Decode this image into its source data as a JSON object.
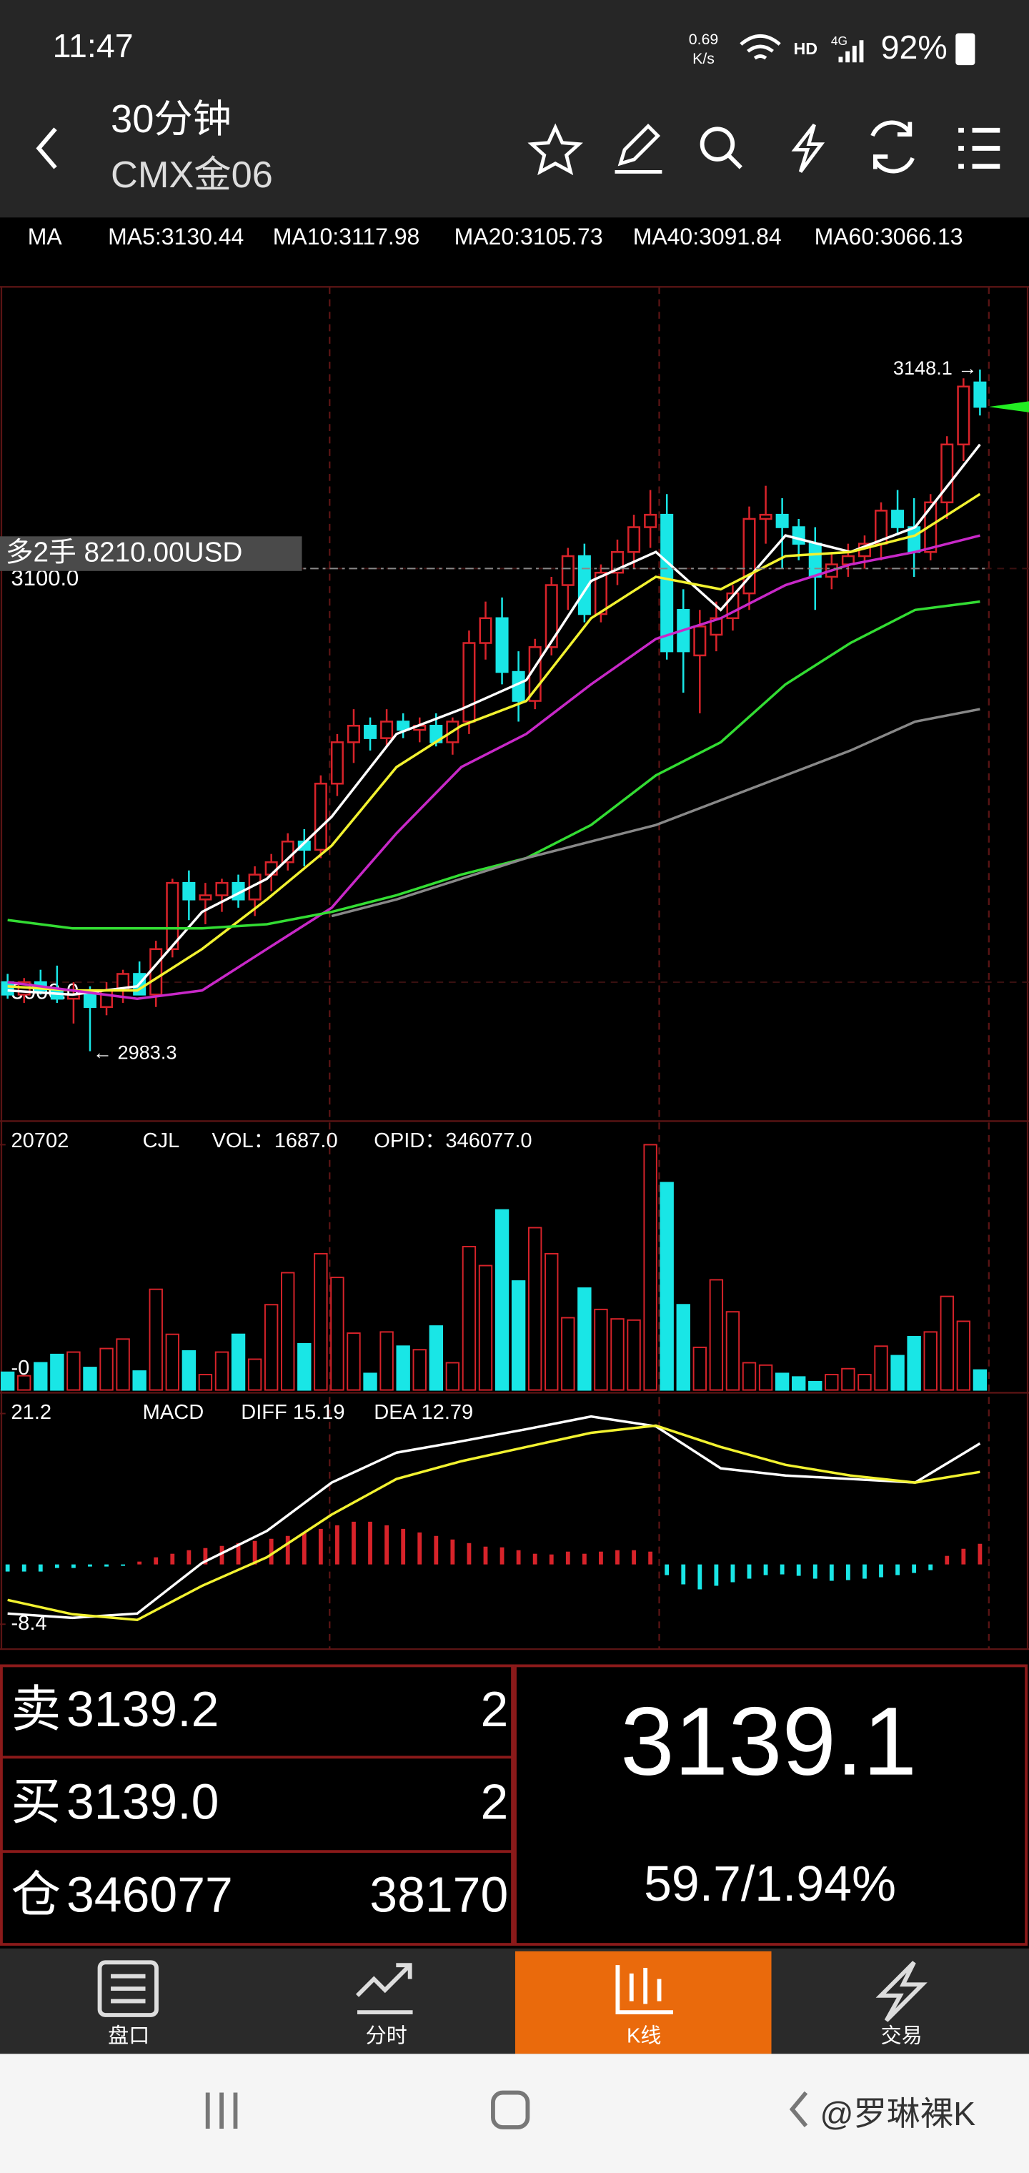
{
  "status_bar": {
    "time": "11:47",
    "speed": "0.69",
    "speed_unit": "K/s",
    "hd": "HD",
    "net": "4G",
    "battery": "92%"
  },
  "header": {
    "title": "30分钟",
    "subtitle": "CMX金06"
  },
  "ma_legend": "MA",
  "chart_data": {
    "type": "candlestick",
    "up_color": "#d8232a",
    "down_color": "#19e6e6",
    "ylim": [
      2966.4,
      3168.1
    ],
    "yticks": [
      {
        "value": 3000,
        "label": "3000.0"
      },
      {
        "value": 3100,
        "label": "3100.0"
      }
    ],
    "high_label": "3148.1 →",
    "low_label": "← 2983.3",
    "position_label": "多2手  8210.00USD",
    "ohlc": [
      [
        3000,
        3002,
        2996,
        2997
      ],
      [
        2997,
        3001,
        2995,
        3000
      ],
      [
        3000,
        3003,
        2997,
        2998
      ],
      [
        2998,
        3004,
        2995,
        2996
      ],
      [
        2996,
        3000,
        2990,
        2997
      ],
      [
        2997,
        2999,
        2983.3,
        2994
      ],
      [
        2994,
        3000,
        2992,
        2998
      ],
      [
        2998,
        3003,
        2995,
        3002
      ],
      [
        3002,
        3005,
        2997,
        2997
      ],
      [
        2997,
        3010,
        2994,
        3008
      ],
      [
        3008,
        3025,
        3006,
        3024
      ],
      [
        3024,
        3027,
        3015,
        3020
      ],
      [
        3020,
        3024,
        3014,
        3021
      ],
      [
        3021,
        3025,
        3017,
        3024
      ],
      [
        3024,
        3026,
        3018,
        3020
      ],
      [
        3020,
        3028,
        3016,
        3026
      ],
      [
        3026,
        3031,
        3022,
        3029
      ],
      [
        3029,
        3036,
        3027,
        3034
      ],
      [
        3034,
        3037,
        3028,
        3032
      ],
      [
        3032,
        3050,
        3030,
        3048
      ],
      [
        3048,
        3060,
        3045,
        3058
      ],
      [
        3058,
        3066,
        3053,
        3062
      ],
      [
        3062,
        3064,
        3056,
        3059
      ],
      [
        3059,
        3066,
        3057,
        3063
      ],
      [
        3063,
        3065,
        3059,
        3061
      ],
      [
        3061,
        3064,
        3058,
        3062
      ],
      [
        3062,
        3065,
        3057,
        3058
      ],
      [
        3058,
        3064,
        3055,
        3063
      ],
      [
        3063,
        3085,
        3060,
        3082
      ],
      [
        3082,
        3092,
        3078,
        3088
      ],
      [
        3088,
        3093,
        3072,
        3075
      ],
      [
        3075,
        3080,
        3063,
        3068
      ],
      [
        3068,
        3083,
        3066,
        3081
      ],
      [
        3081,
        3098,
        3079,
        3096
      ],
      [
        3096,
        3105,
        3090,
        3103
      ],
      [
        3103,
        3106,
        3087,
        3089
      ],
      [
        3089,
        3101,
        3087,
        3099
      ],
      [
        3099,
        3107,
        3096,
        3104
      ],
      [
        3104,
        3113,
        3100,
        3110
      ],
      [
        3110,
        3119,
        3105,
        3113
      ],
      [
        3113,
        3118,
        3078,
        3080
      ],
      [
        3090,
        3095,
        3070,
        3080
      ],
      [
        3079,
        3090,
        3065,
        3086
      ],
      [
        3084,
        3092,
        3080,
        3088
      ],
      [
        3088,
        3096,
        3085,
        3094
      ],
      [
        3094,
        3115,
        3090,
        3112
      ],
      [
        3112,
        3120,
        3106,
        3113
      ],
      [
        3113,
        3117,
        3100,
        3110
      ],
      [
        3110,
        3112,
        3102,
        3106
      ],
      [
        3106,
        3110,
        3090,
        3098
      ],
      [
        3098,
        3104,
        3095,
        3101
      ],
      [
        3101,
        3106,
        3098,
        3103
      ],
      [
        3103,
        3108,
        3100,
        3106
      ],
      [
        3106,
        3116,
        3102,
        3114
      ],
      [
        3114,
        3119,
        3108,
        3110
      ],
      [
        3110,
        3117,
        3098,
        3104
      ],
      [
        3104,
        3118,
        3102,
        3116
      ],
      [
        3116,
        3132,
        3112,
        3130
      ],
      [
        3130,
        3146,
        3126,
        3144
      ],
      [
        3145,
        3148.1,
        3137,
        3139.1
      ]
    ],
    "ma": [
      {
        "name": "MA5:3130.44",
        "color": "#ffffff",
        "values": [
          2998,
          2997,
          2999,
          3017,
          3025,
          3040,
          3060,
          3066,
          3073,
          3097,
          3104,
          3090,
          3108,
          3104,
          3110,
          3130
        ]
      },
      {
        "name": "MA10:3117.98",
        "color": "#f2f230",
        "values": [
          2999,
          2998,
          2998,
          3008,
          3020,
          3033,
          3052,
          3062,
          3068,
          3088,
          3098,
          3095,
          3103,
          3104,
          3108,
          3118
        ]
      },
      {
        "name": "MA20:3105.73",
        "color": "#c828c8",
        "values": [
          3000,
          2998,
          2996,
          2998,
          3008,
          3018,
          3036,
          3052,
          3060,
          3072,
          3083,
          3088,
          3096,
          3101,
          3104,
          3108
        ]
      },
      {
        "name": "MA40:3091.84",
        "color": "#33dd33",
        "values": [
          3015,
          3013,
          3013,
          3013,
          3014,
          3017,
          3021,
          3026,
          3030,
          3038,
          3050,
          3058,
          3072,
          3082,
          3090,
          3092
        ]
      },
      {
        "name": "MA60:3066.13",
        "color": "#888888",
        "values": [
          null,
          null,
          null,
          null,
          null,
          3016,
          3020,
          3025,
          3030,
          3034,
          3038,
          3044,
          3050,
          3056,
          3063,
          3066
        ]
      }
    ],
    "volume": {
      "title": "CJL",
      "vol": "VOL：1687.0",
      "opid": "OPID：346077.0",
      "ylim": [
        0,
        20702
      ],
      "yticks": [
        20702,
        {
          "value": 0,
          "label": "-0"
        }
      ],
      "values": [
        1500,
        1200,
        2300,
        3000,
        3200,
        1900,
        3500,
        4300,
        1600,
        8500,
        4700,
        3300,
        1300,
        3200,
        4700,
        2600,
        7200,
        9900,
        3900,
        11500,
        9500,
        4800,
        1400,
        4900,
        3700,
        3400,
        5400,
        2300,
        12100,
        10500,
        15200,
        9200,
        13700,
        11500,
        6100,
        8600,
        6800,
        6000,
        5900,
        20702,
        17500,
        7200,
        3600,
        9300,
        6600,
        2300,
        2100,
        1400,
        1100,
        700,
        1300,
        1800,
        1300,
        3700,
        2900,
        4500,
        4900,
        7900,
        5800,
        1687
      ]
    },
    "macd": {
      "title": "MACD",
      "ylim": [
        -8.4,
        21.2
      ],
      "yticks": [
        21.2,
        -8.4
      ],
      "hist": [
        -1,
        -1,
        -1,
        -0.5,
        -0.5,
        -0.3,
        -0.3,
        -0.2,
        0.4,
        1,
        1.5,
        2,
        2.3,
        2.6,
        3,
        3.3,
        3.6,
        4,
        4.5,
        5,
        5.5,
        6,
        6,
        5.5,
        5,
        4.5,
        4,
        3.5,
        3,
        2.5,
        2.4,
        2,
        1.5,
        1.4,
        1.8,
        1.5,
        1.8,
        2,
        2,
        1.8,
        -1.5,
        -2.8,
        -3.5,
        -3,
        -2.5,
        -2,
        -1.5,
        -1.4,
        -1.6,
        -2,
        -2.3,
        -2.2,
        -2,
        -1.8,
        -1.5,
        -1.2,
        -0.8,
        1.2,
        2.2,
        2.9
      ],
      "series": [
        {
          "name": "DIFF 15.19",
          "color": "#ffffff",
          "values": [
            -6.9,
            -7.5,
            -6.9,
            0.2,
            4.7,
            11.5,
            15.7,
            17.3,
            19,
            20.8,
            19.4,
            13.5,
            12.5,
            12,
            11.5,
            17
          ]
        },
        {
          "name": "DEA 12.79",
          "color": "#f2f230",
          "values": [
            -5,
            -7,
            -7.8,
            -3,
            1,
            7,
            12,
            14.5,
            16.5,
            18.5,
            19.5,
            16.5,
            14,
            12.5,
            11.5,
            13
          ]
        }
      ]
    }
  },
  "quote": {
    "ask_label": "卖",
    "ask": "3139.2",
    "ask_qty": "2",
    "bid_label": "买",
    "bid": "3139.0",
    "bid_qty": "2",
    "oi_label": "仓",
    "oi": "346077",
    "oi_change": "38170",
    "last": "3139.1",
    "change": "59.7/1.94%"
  },
  "tabs": [
    "盘口",
    "分时",
    "K线",
    "交易"
  ],
  "watermark": "@罗琳裸K"
}
